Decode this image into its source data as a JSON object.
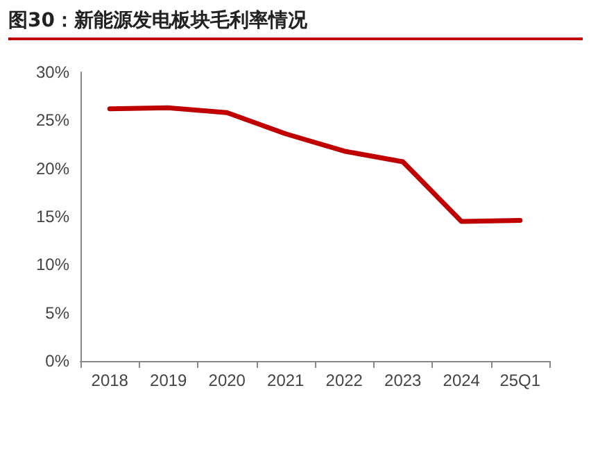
{
  "chart_data": {
    "type": "line",
    "title": "图30：新能源发电板块毛利率情况",
    "categories": [
      "2018",
      "2019",
      "2020",
      "2021",
      "2022",
      "2023",
      "2024",
      "25Q1"
    ],
    "series": [
      {
        "color": "#c00000",
        "values": [
          26.2,
          26.3,
          25.8,
          23.6,
          21.8,
          20.7,
          14.5,
          14.6
        ]
      }
    ],
    "ylim": [
      0,
      30
    ],
    "yticks": [
      {
        "value": 0,
        "label": "0%"
      },
      {
        "value": 5,
        "label": "5%"
      },
      {
        "value": 10,
        "label": "10%"
      },
      {
        "value": 15,
        "label": "15%"
      },
      {
        "value": 20,
        "label": "20%"
      },
      {
        "value": 25,
        "label": "25%"
      },
      {
        "value": 30,
        "label": "30%"
      }
    ],
    "marker": "none",
    "line_style": "solid"
  }
}
